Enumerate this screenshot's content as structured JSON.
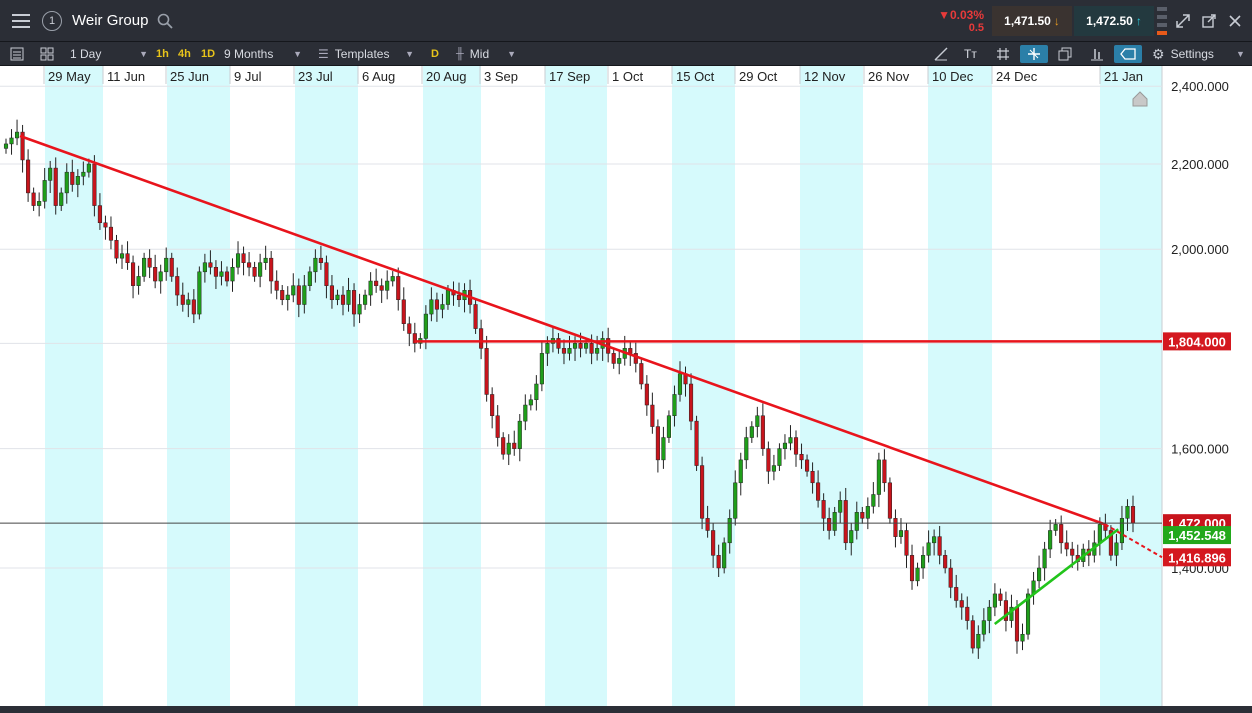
{
  "window": {
    "title": "Weir Group",
    "menu_icon": "hamburger-icon",
    "badge": "1",
    "change_percent": "0.03%",
    "change_abs": "0.5",
    "sell_price": "1,471.50",
    "buy_price": "1,472.50"
  },
  "toolbar": {
    "interval": "1 Day",
    "quick_intervals": [
      "1h",
      "4h",
      "1D"
    ],
    "range": "9 Months",
    "templates": "Templates",
    "d_badge": "D",
    "price_type": "Mid",
    "settings": "Settings"
  },
  "chart_data": {
    "type": "candlestick",
    "instrument": "Weir Group",
    "x_tick_labels": [
      "29 May",
      "11 Jun",
      "25 Jun",
      "9 Jul",
      "23 Jul",
      "6 Aug",
      "20 Aug",
      "3 Sep",
      "17 Sep",
      "1 Oct",
      "15 Oct",
      "29 Oct",
      "12 Nov",
      "26 Nov",
      "10 Dec",
      "24 Dec",
      "21 Jan"
    ],
    "y_tick_labels": [
      "2,400.000",
      "2,200.000",
      "2,000.000",
      "1,800.000",
      "1,600.000",
      "1,400.000"
    ],
    "y_ticks": [
      2400,
      2200,
      2000,
      1800,
      1600,
      1400
    ],
    "y_scale": "log",
    "ylim": [
      1230,
      2420
    ],
    "closes": [
      2250,
      2265,
      2280,
      2210,
      2130,
      2100,
      2110,
      2160,
      2190,
      2100,
      2130,
      2180,
      2150,
      2170,
      2180,
      2200,
      2100,
      2060,
      2050,
      2020,
      1980,
      1990,
      1970,
      1920,
      1940,
      1980,
      1960,
      1930,
      1950,
      1980,
      1940,
      1900,
      1880,
      1890,
      1860,
      1950,
      1970,
      1960,
      1940,
      1950,
      1930,
      1960,
      1990,
      1970,
      1960,
      1940,
      1970,
      1980,
      1930,
      1910,
      1890,
      1900,
      1920,
      1880,
      1920,
      1950,
      1980,
      1970,
      1920,
      1890,
      1900,
      1880,
      1910,
      1860,
      1880,
      1900,
      1930,
      1920,
      1910,
      1930,
      1940,
      1890,
      1840,
      1820,
      1800,
      1810,
      1860,
      1890,
      1870,
      1880,
      1910,
      1900,
      1890,
      1910,
      1880,
      1830,
      1790,
      1700,
      1660,
      1620,
      1590,
      1610,
      1600,
      1650,
      1680,
      1690,
      1720,
      1780,
      1800,
      1810,
      1790,
      1780,
      1790,
      1800,
      1790,
      1800,
      1780,
      1790,
      1810,
      1780,
      1760,
      1770,
      1790,
      1780,
      1760,
      1720,
      1680,
      1640,
      1580,
      1620,
      1660,
      1700,
      1740,
      1720,
      1650,
      1570,
      1480,
      1460,
      1420,
      1400,
      1440,
      1480,
      1540,
      1580,
      1620,
      1640,
      1660,
      1600,
      1560,
      1570,
      1600,
      1610,
      1620,
      1590,
      1580,
      1560,
      1540,
      1510,
      1480,
      1460,
      1490,
      1510,
      1440,
      1460,
      1490,
      1480,
      1500,
      1520,
      1580,
      1540,
      1480,
      1450,
      1460,
      1420,
      1380,
      1400,
      1420,
      1440,
      1450,
      1420,
      1400,
      1370,
      1350,
      1340,
      1320,
      1280,
      1300,
      1320,
      1340,
      1360,
      1350,
      1320,
      1340,
      1290,
      1300,
      1360,
      1380,
      1400,
      1430,
      1460,
      1470,
      1440,
      1430,
      1420,
      1410,
      1430,
      1420,
      1440,
      1470,
      1460,
      1420,
      1440,
      1480,
      1500,
      1472
    ],
    "trendlines": [
      {
        "color": "#e8141c",
        "from": [
          "2018-05-20",
          2270
        ],
        "to": [
          "2019-01-21",
          1470
        ],
        "extended_value": 1416.896
      },
      {
        "color": "#e8141c",
        "type": "horizontal",
        "value": 1804.0
      },
      {
        "color": "#22c41b",
        "from": [
          "2018-12-27",
          1315
        ],
        "to": [
          "2019-01-24",
          1462
        ],
        "extended_value": 1452.548
      }
    ],
    "price_labels": [
      {
        "value": "1,804.000",
        "color": "#d4181f"
      },
      {
        "value": "1,472.000",
        "color": "#c8141c"
      },
      {
        "value": "1,452.548",
        "color": "#22a81b"
      },
      {
        "value": "1,416.896",
        "color": "#d4181f"
      }
    ],
    "current_price": 1472
  }
}
